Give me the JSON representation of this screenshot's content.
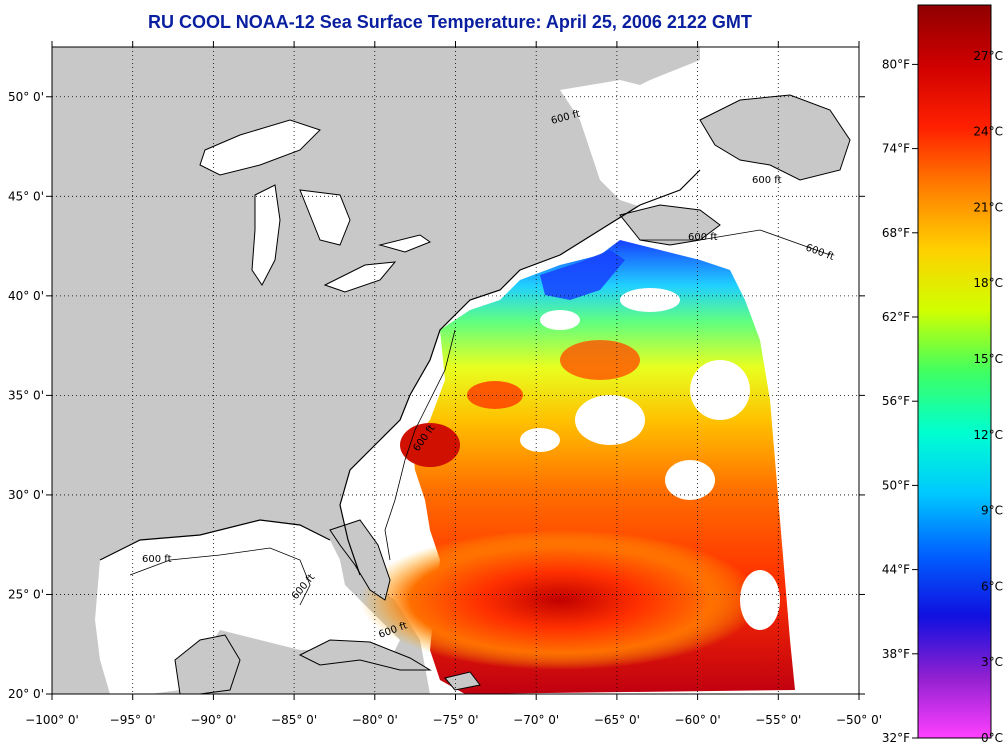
{
  "title": "RU COOL  NOAA-12  Sea Surface Temperature:  April 25, 2006 2122 GMT",
  "colors": {
    "title": "#0a1fa0",
    "land": "#c8c8c8",
    "ocean_nodata": "#ffffff",
    "coast": "#000000",
    "grid": "#000000"
  },
  "map": {
    "lon_ticks": [
      "−100° 0'",
      "−95° 0'",
      "−90° 0'",
      "−85° 0'",
      "−80° 0'",
      "−75° 0'",
      "−70° 0'",
      "−65° 0'",
      "−60° 0'",
      "−55° 0'",
      "−50° 0'"
    ],
    "lat_ticks": [
      "50° 0'",
      "45° 0'",
      "40° 0'",
      "35° 0'",
      "30° 0'",
      "25° 0'",
      "20° 0'"
    ],
    "lon_range": [
      -100,
      -50
    ],
    "lat_range": [
      20,
      52.5
    ],
    "contour_label": "600 ft"
  },
  "colorbar": {
    "fahrenheit": [
      "80°F",
      "74°F",
      "68°F",
      "62°F",
      "56°F",
      "50°F",
      "44°F",
      "38°F",
      "32°F"
    ],
    "celsius": [
      "27°C",
      "24°C",
      "21°C",
      "18°C",
      "15°C",
      "12°C",
      "9°C",
      "6°C",
      "3°C",
      "0°C"
    ],
    "stops": [
      "#ff40ff",
      "#9020d0",
      "#1010e0",
      "#0060ff",
      "#00c8ff",
      "#00ffd0",
      "#40ff60",
      "#d0ff00",
      "#ffd000",
      "#ff8000",
      "#ff2000",
      "#d00000",
      "#900000"
    ]
  }
}
